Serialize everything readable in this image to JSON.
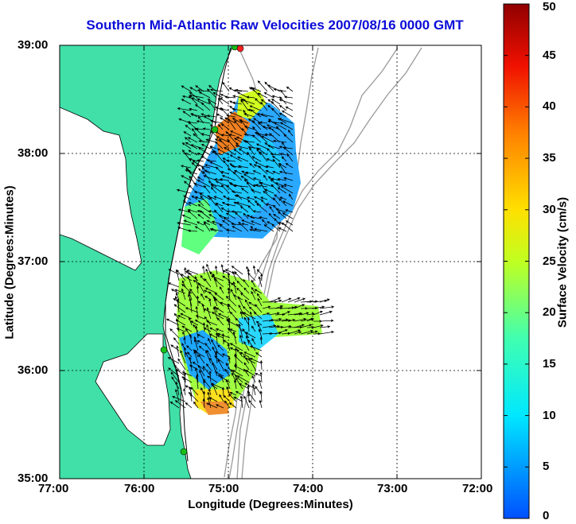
{
  "title": "Southern Mid-Atlantic Raw Velocities 2007/08/16 0000 GMT",
  "xlabel": "Longitude (Degrees:Minutes)",
  "ylabel": "Latitude (Degrees:Minutes)",
  "colorbar": {
    "label": "Surface Velocity (cm/s)",
    "min": 0,
    "max": 50,
    "ticks": [
      "0",
      "5",
      "10",
      "15",
      "20",
      "25",
      "30",
      "35",
      "40",
      "45",
      "50"
    ]
  },
  "map": {
    "xticks": [
      "77:00",
      "76:00",
      "75:00",
      "74:00",
      "73:00",
      "72:00"
    ],
    "yticks": [
      "39:00",
      "38:00",
      "37:00",
      "36:00",
      "35:00"
    ],
    "lon_range": [
      -77,
      -72
    ],
    "lat_range": [
      35,
      39
    ],
    "grid": true,
    "colors": {
      "land": "#40e0a8",
      "coast": "#000000",
      "bathymetry": "#9a9a9a",
      "station": "#18c018",
      "station_alt": "#ff2020"
    }
  }
}
